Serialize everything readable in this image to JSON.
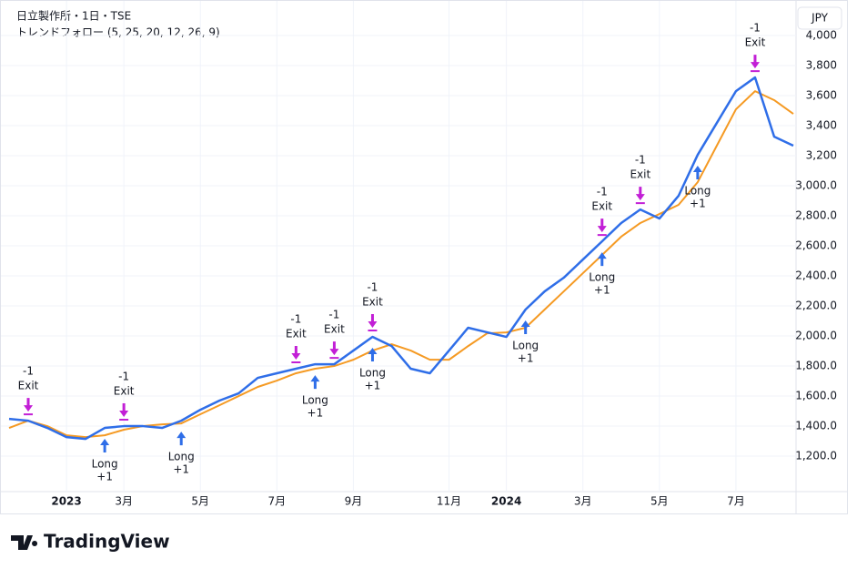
{
  "chart_data": {
    "type": "line",
    "title": "日立製作所・1日・TSE",
    "subtitle": "トレンドフォロー (5, 25, 20, 12, 26, 9)",
    "currency": "JPY",
    "brand": "TradingView",
    "categories": [
      null,
      null,
      null,
      "2023",
      null,
      null,
      "3月",
      null,
      null,
      null,
      "5月",
      null,
      null,
      null,
      "7月",
      null,
      null,
      null,
      "9月",
      null,
      null,
      null,
      null,
      "11月",
      null,
      null,
      "2024",
      null,
      null,
      null,
      "3月",
      null,
      null,
      null,
      "5月",
      null,
      null,
      null,
      "7月",
      null,
      null,
      null
    ],
    "series": [
      {
        "color": "#2f6ee8",
        "values": [
          1448,
          1436,
          1388,
          1327,
          1315,
          1388,
          1400,
          1400,
          1388,
          1436,
          1509,
          1570,
          1618,
          1721,
          1752,
          1782,
          1812,
          1812,
          1903,
          1994,
          1933,
          1782,
          1752,
          1903,
          2055,
          2024,
          1994,
          2176,
          2297,
          2388,
          2509,
          2630,
          2752,
          2842,
          2782,
          2933,
          3206,
          3418,
          3630,
          3721,
          3327,
          3267
        ]
      },
      {
        "color": "#f59a23",
        "values": [
          1388,
          1436,
          1400,
          1339,
          1327,
          1339,
          1376,
          1400,
          1412,
          1418,
          1479,
          1539,
          1600,
          1661,
          1703,
          1752,
          1782,
          1800,
          1842,
          1903,
          1945,
          1903,
          1842,
          1842,
          1933,
          2018,
          2024,
          2055,
          2176,
          2297,
          2418,
          2539,
          2661,
          2752,
          2812,
          2873,
          3024,
          3267,
          3509,
          3630,
          3570,
          3479
        ]
      }
    ],
    "long_signals": [
      {
        "index": 5,
        "label": [
          "Long",
          "+1"
        ]
      },
      {
        "index": 9,
        "label": [
          "Long",
          "+1"
        ]
      },
      {
        "index": 16,
        "label": [
          "Long",
          "+1"
        ]
      },
      {
        "index": 19,
        "label": [
          "Long",
          "+1"
        ]
      },
      {
        "index": 27,
        "label": [
          "Long",
          "+1"
        ]
      },
      {
        "index": 31,
        "label": [
          "Long",
          "+1"
        ]
      },
      {
        "index": 36,
        "label": [
          "Long",
          "+1"
        ]
      }
    ],
    "exit_signals": [
      {
        "index": 1,
        "label": [
          "-1",
          "Exit"
        ]
      },
      {
        "index": 6,
        "label": [
          "-1",
          "Exit"
        ]
      },
      {
        "index": 15,
        "label": [
          "-1",
          "Exit"
        ]
      },
      {
        "index": 17,
        "label": [
          "-1",
          "Exit"
        ]
      },
      {
        "index": 19,
        "label": [
          "-1",
          "Exit"
        ]
      },
      {
        "index": 31,
        "label": [
          "-1",
          "Exit"
        ]
      },
      {
        "index": 33,
        "label": [
          "-1",
          "Exit"
        ]
      },
      {
        "index": 39,
        "label": [
          "-1",
          "Exit"
        ]
      }
    ],
    "long_color": "#2f6ee8",
    "exit_color": "#c21fd6",
    "ylim": [
      964,
      4176
    ],
    "yticks": [
      {
        "value": 4000,
        "label": "4,000"
      },
      {
        "value": 3800,
        "label": "3,800"
      },
      {
        "value": 3600,
        "label": "3,600"
      },
      {
        "value": 3400,
        "label": "3,400"
      },
      {
        "value": 3200,
        "label": "3,200"
      },
      {
        "value": 3000,
        "label": "3,000.0"
      },
      {
        "value": 2800,
        "label": "2,800.0"
      },
      {
        "value": 2600,
        "label": "2,600.0"
      },
      {
        "value": 2400,
        "label": "2,400.0"
      },
      {
        "value": 2200,
        "label": "2,200.0"
      },
      {
        "value": 2000,
        "label": "2,000.0"
      },
      {
        "value": 1800,
        "label": "1,800.0"
      },
      {
        "value": 1600,
        "label": "1,600.0"
      },
      {
        "value": 1400,
        "label": "1,400.0"
      },
      {
        "value": 1200,
        "label": "1,200.0"
      }
    ],
    "grid": true
  }
}
